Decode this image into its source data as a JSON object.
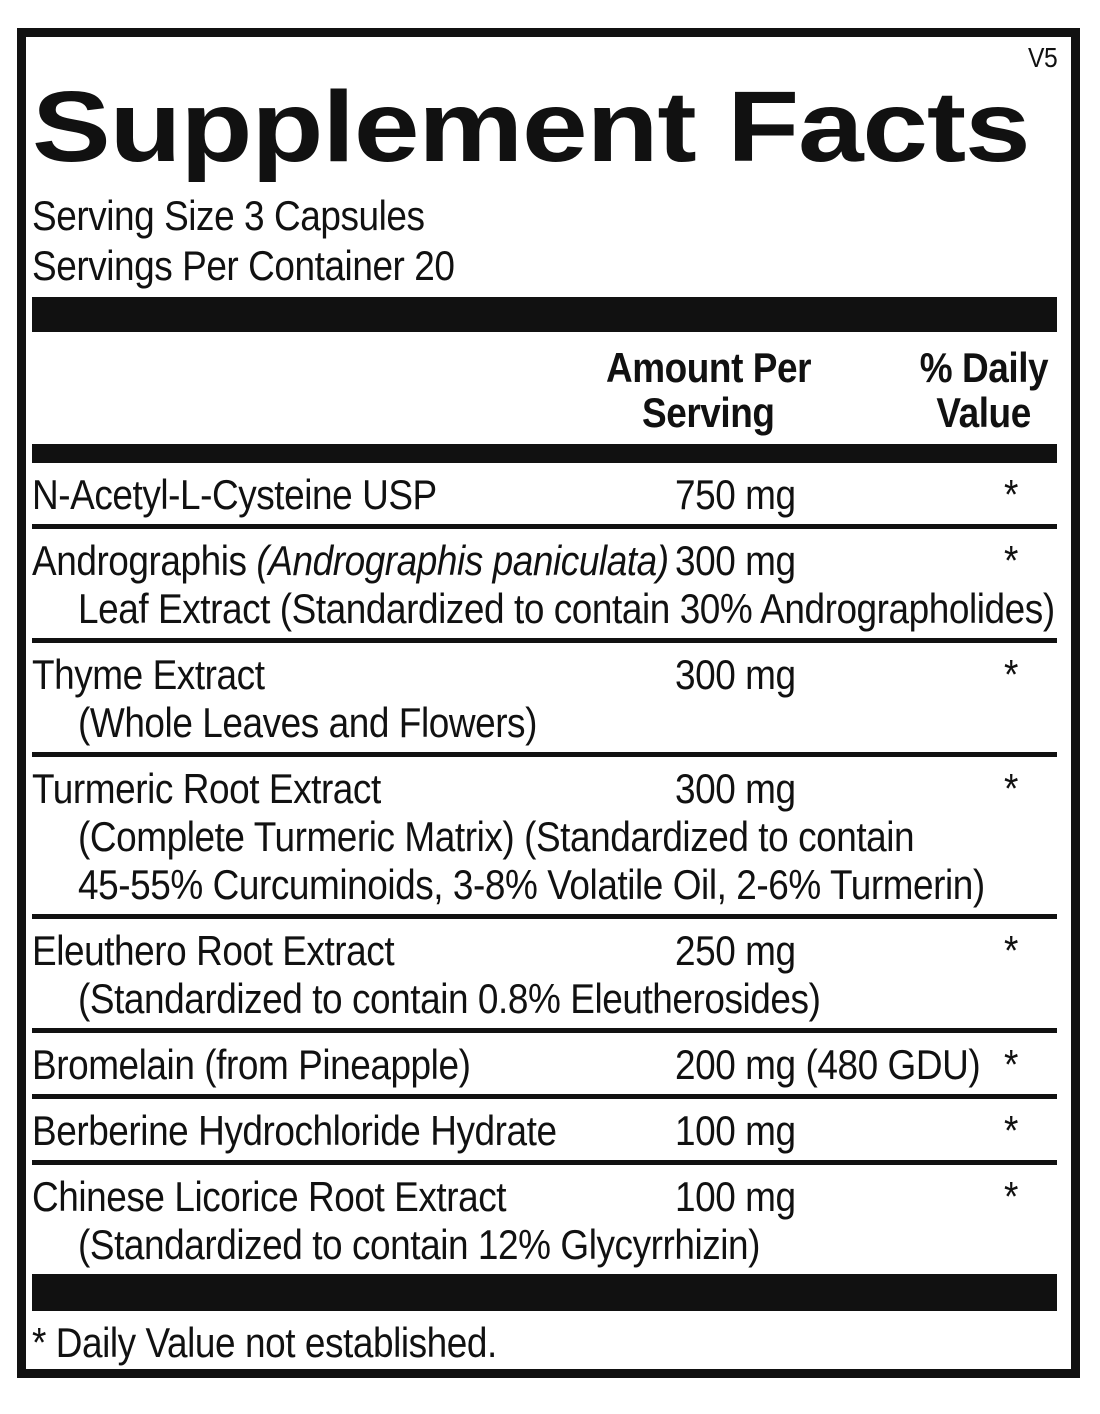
{
  "version": "V5",
  "title": "Supplement Facts",
  "serving": {
    "size": "Serving Size 3 Capsules",
    "per_container": "Servings Per Container 20"
  },
  "columns": {
    "amount_line1": "Amount Per",
    "amount_line2": "Serving",
    "dv_line1": "% Daily",
    "dv_line2": "Value"
  },
  "rows": [
    {
      "name": "N-Acetyl-L-Cysteine USP",
      "amount": "750 mg",
      "dv": "*"
    },
    {
      "name": "Andrographis",
      "name_italic": "(Andrographis paniculata)",
      "amount": "300 mg",
      "dv": "*",
      "lines": [
        "Leaf Extract (Standardized to contain 30% Andrographolides)"
      ]
    },
    {
      "name": "Thyme Extract",
      "amount": "300 mg",
      "dv": "*",
      "lines": [
        "(Whole Leaves and Flowers)"
      ]
    },
    {
      "name": "Turmeric Root Extract",
      "amount": "300 mg",
      "dv": "*",
      "lines": [
        "(Complete Turmeric Matrix) (Standardized to contain",
        "45-55% Curcuminoids, 3-8% Volatile Oil, 2-6% Turmerin)"
      ]
    },
    {
      "name": "Eleuthero Root Extract",
      "amount": "250 mg",
      "dv": "*",
      "lines": [
        "(Standardized to contain 0.8% Eleutherosides)"
      ]
    },
    {
      "name": "Bromelain (from Pineapple)",
      "amount": "200 mg (480 GDU)",
      "dv": "*"
    },
    {
      "name": "Berberine Hydrochloride Hydrate",
      "amount": "100 mg",
      "dv": "*"
    },
    {
      "name": "Chinese Licorice Root Extract",
      "amount": "100 mg",
      "dv": "*",
      "lines": [
        "(Standardized to contain 12% Glycyrrhizin)"
      ]
    }
  ],
  "footnote": "* Daily Value not established.",
  "colors": {
    "ink": "#111111",
    "background": "#ffffff"
  }
}
